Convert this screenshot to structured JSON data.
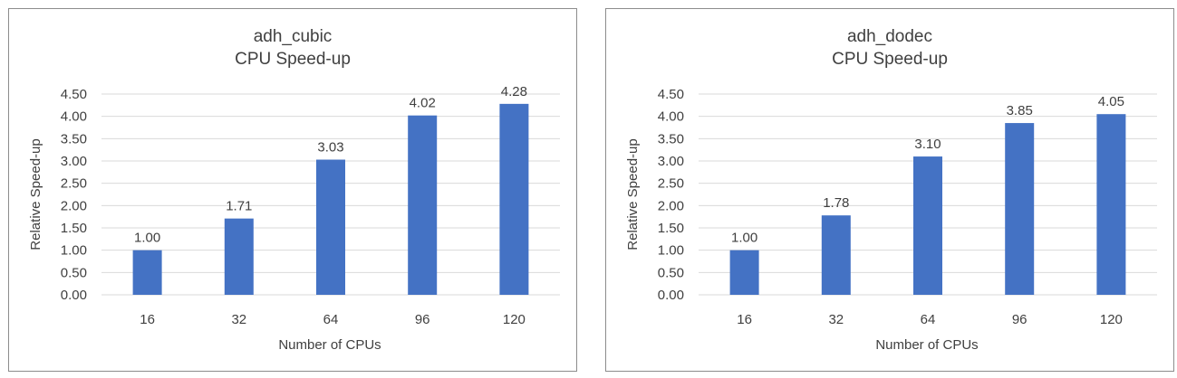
{
  "chart_data": [
    {
      "type": "bar",
      "title": [
        "adh_cubic",
        "CPU Speed-up"
      ],
      "xlabel": "Number of CPUs",
      "ylabel": "Relative Speed-up",
      "categories": [
        "16",
        "32",
        "64",
        "96",
        "120"
      ],
      "values": [
        1.0,
        1.71,
        3.03,
        4.02,
        4.28
      ],
      "data_labels": [
        "1.00",
        "1.71",
        "3.03",
        "4.02",
        "4.28"
      ],
      "ylim": [
        0,
        4.5
      ],
      "yticks": [
        "0.00",
        "0.50",
        "1.00",
        "1.50",
        "2.00",
        "2.50",
        "3.00",
        "3.50",
        "4.00",
        "4.50"
      ],
      "grid": true,
      "legend": "none",
      "bar_color": "#4472c4"
    },
    {
      "type": "bar",
      "title": [
        "adh_dodec",
        "CPU Speed-up"
      ],
      "xlabel": "Number of CPUs",
      "ylabel": "Relative Speed-up",
      "categories": [
        "16",
        "32",
        "64",
        "96",
        "120"
      ],
      "values": [
        1.0,
        1.78,
        3.1,
        3.85,
        4.05
      ],
      "data_labels": [
        "1.00",
        "1.78",
        "3.10",
        "3.85",
        "4.05"
      ],
      "ylim": [
        0,
        4.5
      ],
      "yticks": [
        "0.00",
        "0.50",
        "1.00",
        "1.50",
        "2.00",
        "2.50",
        "3.00",
        "3.50",
        "4.00",
        "4.50"
      ],
      "grid": true,
      "legend": "none",
      "bar_color": "#4472c4"
    }
  ]
}
